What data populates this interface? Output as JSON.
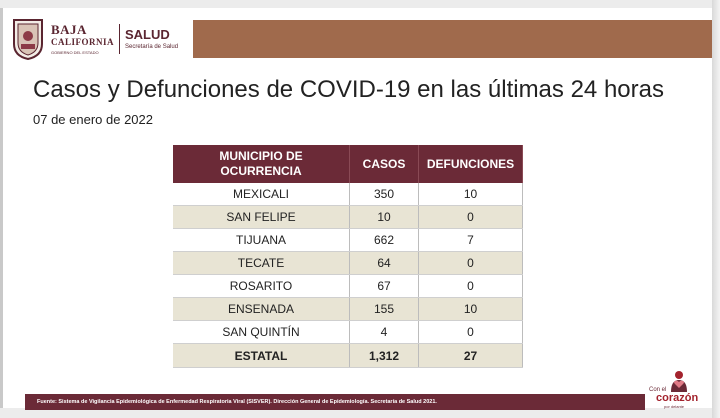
{
  "header": {
    "logo_baja": "BAJA",
    "logo_california": "CALIFORNIA",
    "logo_gobierno": "GOBIERNO DEL ESTADO",
    "logo_salud": "SALUD",
    "logo_secretaria": "Secretaría de Salud",
    "band_color": "#a06a4c"
  },
  "title": "Casos y Defunciones de COVID-19 en las últimas 24 horas",
  "date": "07 de enero de 2022",
  "table": {
    "headers": {
      "municipio_line1": "MUNICIPIO DE",
      "municipio_line2": "OCURRENCIA",
      "casos": "CASOS",
      "defunciones": "DEFUNCIONES"
    },
    "header_color": "#6b2a37",
    "rows": [
      {
        "municipio": "MEXICALI",
        "casos": "350",
        "defunciones": "10"
      },
      {
        "municipio": "SAN FELIPE",
        "casos": "10",
        "defunciones": "0"
      },
      {
        "municipio": "TIJUANA",
        "casos": "662",
        "defunciones": "7"
      },
      {
        "municipio": "TECATE",
        "casos": "64",
        "defunciones": "0"
      },
      {
        "municipio": "ROSARITO",
        "casos": "67",
        "defunciones": "0"
      },
      {
        "municipio": "ENSENADA",
        "casos": "155",
        "defunciones": "10"
      },
      {
        "municipio": "SAN QUINTÍN",
        "casos": "4",
        "defunciones": "0"
      }
    ],
    "total": {
      "municipio": "ESTATAL",
      "casos": "1,312",
      "defunciones": "27"
    }
  },
  "footer": {
    "source": "Fuente: Sistema de Vigilancia Epidemiológica de Enfermedad Respiratoria Viral (SISVER). Dirección General de Epidemiología. Secretaría de Salud 2021."
  },
  "corner_logo": {
    "con": "Con el",
    "corazon": "corazón",
    "sub": "por delante"
  }
}
